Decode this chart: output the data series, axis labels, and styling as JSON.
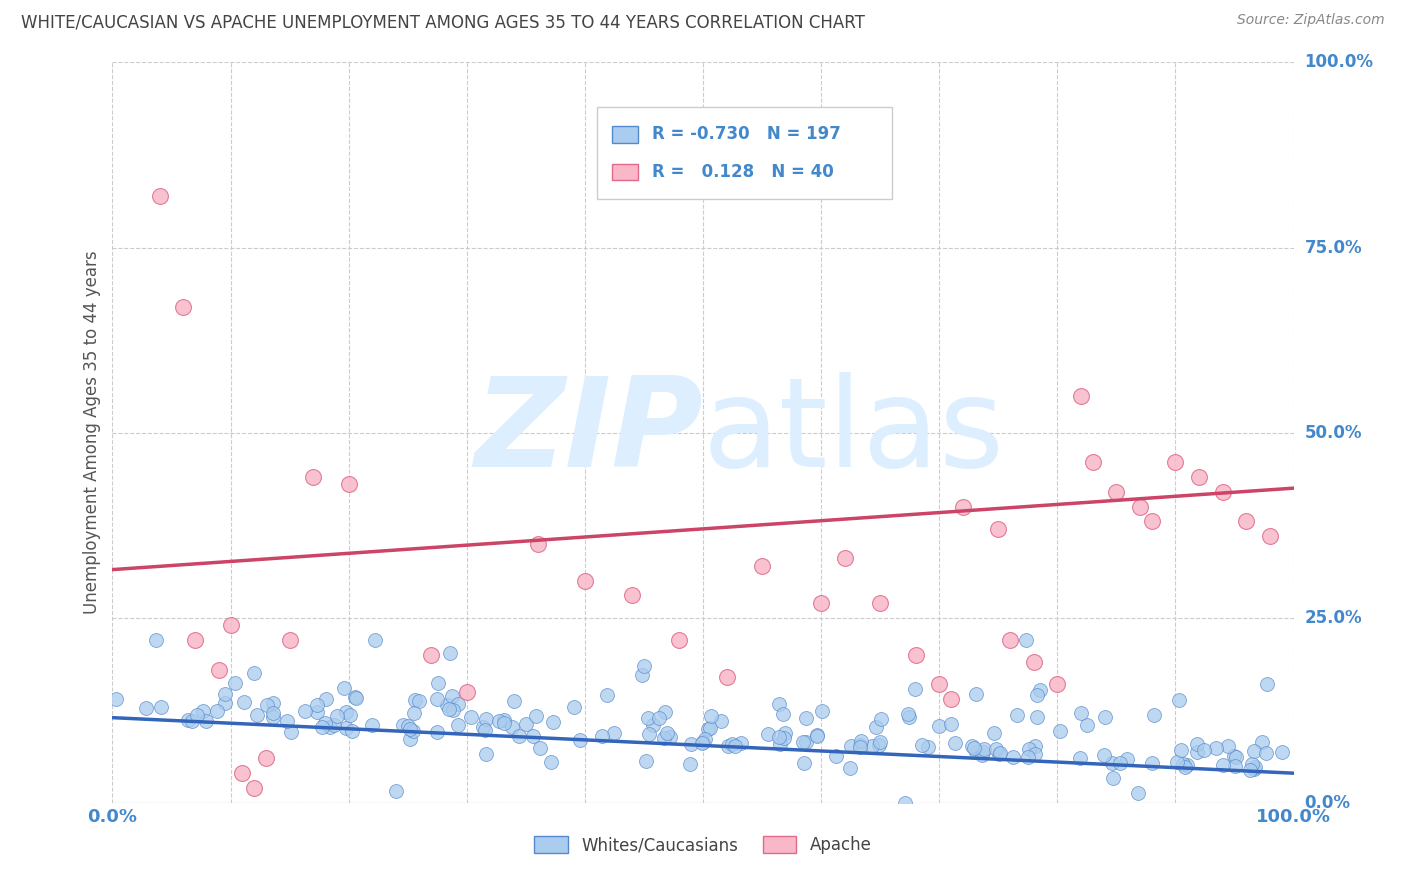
{
  "title": "WHITE/CAUCASIAN VS APACHE UNEMPLOYMENT AMONG AGES 35 TO 44 YEARS CORRELATION CHART",
  "source": "Source: ZipAtlas.com",
  "ylabel": "Unemployment Among Ages 35 to 44 years",
  "ytick_vals": [
    0.0,
    0.25,
    0.5,
    0.75,
    1.0
  ],
  "ytick_labels": [
    "0.0%",
    "25.0%",
    "50.0%",
    "75.0%",
    "100.0%"
  ],
  "legend_blue_label": "Whites/Caucasians",
  "legend_pink_label": "Apache",
  "legend_blue_R": "-0.730",
  "legend_blue_N": "197",
  "legend_pink_R": "0.128",
  "legend_pink_N": "40",
  "blue_face_color": "#aaccee",
  "blue_edge_color": "#5588cc",
  "pink_face_color": "#f8b8c8",
  "pink_edge_color": "#e06888",
  "blue_trend_color": "#3366bb",
  "pink_trend_color": "#cc4466",
  "blue_trend": [
    0.115,
    0.04
  ],
  "pink_trend": [
    0.315,
    0.425
  ],
  "background_color": "#ffffff",
  "grid_color": "#cccccc",
  "title_color": "#444444",
  "axis_tick_color": "#4488cc",
  "watermark_color": "#ddeeff",
  "title_fontsize": 12,
  "axis_fontsize": 13,
  "source_fontsize": 10
}
